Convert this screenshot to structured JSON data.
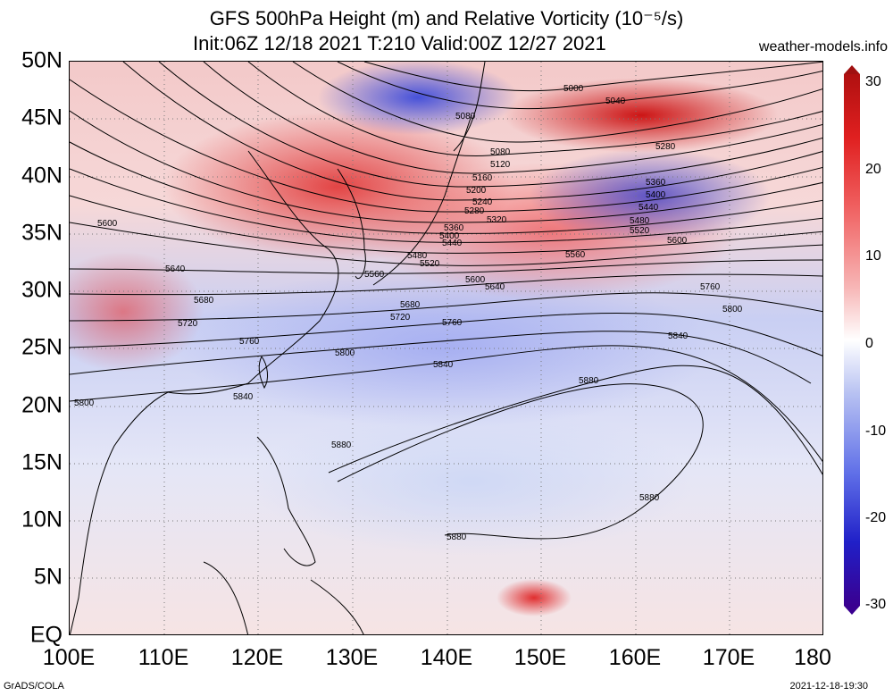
{
  "title": {
    "line1": "GFS 500hPa Height (m) and Relative Vorticity (10⁻⁵/s)",
    "line2": "Init:06Z 12/18 2021 T:210 Valid:00Z 12/27 2021"
  },
  "site": "weather-models.info",
  "y_ticks": [
    "50N",
    "45N",
    "40N",
    "35N",
    "30N",
    "25N",
    "20N",
    "15N",
    "10N",
    "5N",
    "EQ"
  ],
  "x_ticks": [
    "100E",
    "110E",
    "120E",
    "130E",
    "140E",
    "150E",
    "160E",
    "170E",
    "180"
  ],
  "colorbar": {
    "ticks": [
      "30",
      "20",
      "10",
      "0",
      "-10",
      "-20",
      "-30"
    ],
    "top_color": "#b01010",
    "bottom_color": "#3a0090"
  },
  "contour_labels": [
    "5000",
    "5040",
    "5080",
    "5080",
    "5120",
    "5160",
    "5200",
    "5240",
    "5280",
    "5320",
    "5360",
    "5400",
    "5440",
    "5480",
    "5520",
    "5560",
    "5600",
    "5640",
    "5680",
    "5720",
    "5760",
    "5800",
    "5840",
    "5880",
    "5280",
    "5360",
    "5400",
    "5440",
    "5480",
    "5520",
    "5560",
    "5600",
    "5640",
    "5680",
    "5720",
    "5760",
    "5800",
    "5840",
    "5880",
    "5880",
    "5880",
    "5600",
    "5640",
    "5680",
    "5720",
    "5760",
    "5800",
    "5840",
    "5800",
    "5880"
  ],
  "footer": {
    "left": "GrADS/COLA",
    "right": "2021-12-18-19:30"
  }
}
